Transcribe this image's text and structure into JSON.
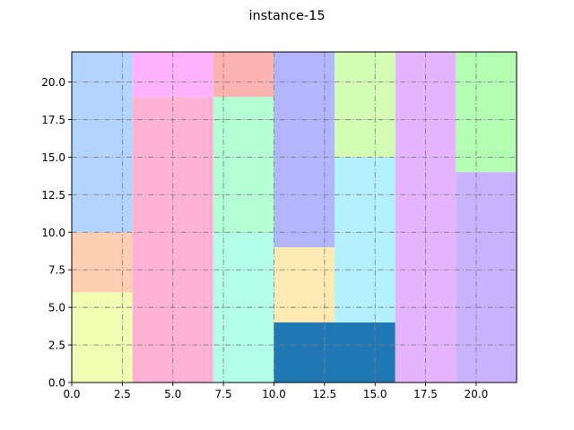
{
  "chart_data": {
    "type": "rectangle-packing",
    "title": "instance-15",
    "xlim": [
      0,
      22
    ],
    "ylim": [
      0,
      22
    ],
    "xticks": [
      "0.0",
      "2.5",
      "5.0",
      "7.5",
      "10.0",
      "12.5",
      "15.0",
      "17.5",
      "20.0"
    ],
    "yticks": [
      "0.0",
      "2.5",
      "5.0",
      "7.5",
      "10.0",
      "12.5",
      "15.0",
      "17.5",
      "20.0"
    ],
    "grid": "dash-dot",
    "grid_color": "#808080",
    "rectangles": [
      {
        "x": 0,
        "y": 10,
        "w": 3,
        "h": 12,
        "color": "#b3d4fe"
      },
      {
        "x": 0,
        "y": 6,
        "w": 3,
        "h": 4,
        "color": "#fed0b3"
      },
      {
        "x": 0,
        "y": 0,
        "w": 3,
        "h": 6,
        "color": "#f0feb3"
      },
      {
        "x": 3,
        "y": 19,
        "w": 4,
        "h": 3,
        "color": "#fdb3fc"
      },
      {
        "x": 3,
        "y": 0,
        "w": 4,
        "h": 19,
        "color": "#feb3d6"
      },
      {
        "x": 7,
        "y": 19,
        "w": 3,
        "h": 3,
        "color": "#feb3b3"
      },
      {
        "x": 7,
        "y": 10,
        "w": 3,
        "h": 9,
        "color": "#b3fed4"
      },
      {
        "x": 7,
        "y": 0,
        "w": 3,
        "h": 10,
        "color": "#b3feea"
      },
      {
        "x": 10,
        "y": 9,
        "w": 3,
        "h": 13,
        "color": "#b3b5fe"
      },
      {
        "x": 10,
        "y": 4,
        "w": 3,
        "h": 5,
        "color": "#feebb3"
      },
      {
        "x": 10,
        "y": 0,
        "w": 6,
        "h": 4,
        "color": "#1f77b4"
      },
      {
        "x": 13,
        "y": 15,
        "w": 3,
        "h": 7,
        "color": "#d4feb3"
      },
      {
        "x": 13,
        "y": 4,
        "w": 3,
        "h": 11,
        "color": "#b3f1fe"
      },
      {
        "x": 16,
        "y": 0,
        "w": 3,
        "h": 22,
        "color": "#e6b3fe"
      },
      {
        "x": 19,
        "y": 14,
        "w": 3,
        "h": 8,
        "color": "#b3feb3"
      },
      {
        "x": 19,
        "y": 0,
        "w": 3,
        "h": 14,
        "color": "#c8b3fe"
      }
    ]
  }
}
